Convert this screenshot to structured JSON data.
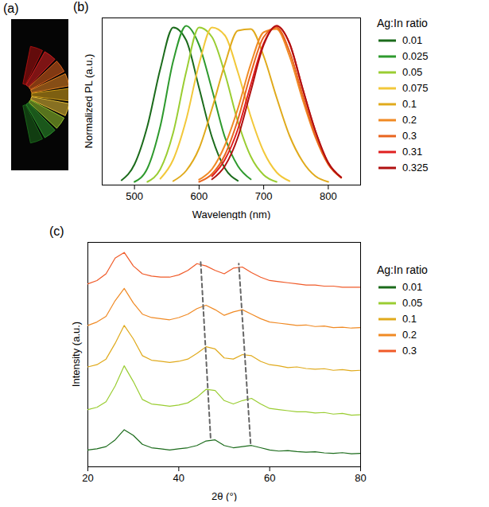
{
  "chart_data": [
    {
      "type": "image",
      "panel_label": "(a)"
    },
    {
      "type": "line",
      "panel_label": "(b)",
      "x_label": "Wavelength (nm)",
      "y_label": "Normalized PL (a.u.)",
      "xlim": [
        450,
        850
      ],
      "xticks": [
        500,
        600,
        700,
        800
      ],
      "ylim": [
        0,
        1.05
      ],
      "tick_labels": "x",
      "grid": false,
      "legend": "right",
      "legend_title": "Ag:In ratio",
      "x": [
        460,
        480,
        500,
        520,
        540,
        560,
        580,
        600,
        620,
        640,
        660,
        680,
        700,
        720,
        740,
        760,
        780,
        800,
        820,
        840
      ],
      "series": [
        {
          "name": "0.01",
          "color": "#1b6b1b",
          "values": [
            null,
            0.03,
            0.13,
            0.37,
            0.73,
            0.99,
            0.91,
            0.61,
            0.3,
            0.105,
            0.027,
            null,
            null,
            null,
            null,
            null,
            null,
            null,
            null,
            null
          ]
        },
        {
          "name": "0.025",
          "color": "#2e9a2e",
          "values": [
            null,
            null,
            0.02,
            0.105,
            0.37,
            0.78,
            1.0,
            0.88,
            0.6,
            0.3,
            0.12,
            0.036,
            null,
            null,
            null,
            null,
            null,
            null,
            null,
            null
          ]
        },
        {
          "name": "0.05",
          "color": "#9acd32",
          "values": [
            null,
            null,
            null,
            0.02,
            0.1,
            0.33,
            0.71,
            0.99,
            0.93,
            0.7,
            0.4,
            0.18,
            0.064,
            0.02,
            null,
            null,
            null,
            null,
            null,
            null
          ]
        },
        {
          "name": "0.075",
          "color": "#f2c83a",
          "values": [
            null,
            null,
            null,
            null,
            0.04,
            0.16,
            0.41,
            0.76,
            0.99,
            0.94,
            0.71,
            0.43,
            0.21,
            0.08,
            0.025,
            null,
            null,
            null,
            null,
            null
          ]
        },
        {
          "name": "0.1",
          "color": "#e0aa1c",
          "values": [
            null,
            null,
            null,
            null,
            null,
            0.025,
            0.09,
            0.23,
            0.48,
            0.76,
            0.97,
            0.98,
            0.81,
            0.55,
            0.31,
            0.15,
            0.056,
            0.02,
            null,
            null
          ]
        },
        {
          "name": "0.2",
          "color": "#f08a24",
          "values": [
            null,
            null,
            null,
            null,
            null,
            null,
            null,
            0.034,
            0.1,
            0.25,
            0.48,
            0.76,
            0.96,
            0.98,
            0.81,
            0.54,
            0.3,
            0.13,
            0.045,
            null
          ]
        },
        {
          "name": "0.3",
          "color": "#e8641e",
          "values": [
            null,
            null,
            null,
            null,
            null,
            null,
            null,
            0.02,
            0.07,
            0.19,
            0.41,
            0.7,
            0.93,
            0.99,
            0.84,
            0.57,
            0.31,
            0.13,
            0.047,
            null
          ]
        },
        {
          "name": "0.31",
          "color": "#e02020",
          "values": [
            null,
            null,
            null,
            null,
            null,
            null,
            null,
            null,
            0.055,
            0.16,
            0.35,
            0.63,
            0.89,
            1.0,
            0.89,
            0.61,
            0.34,
            0.14,
            0.048,
            null
          ]
        },
        {
          "name": "0.325",
          "color": "#b01010",
          "values": [
            null,
            null,
            null,
            null,
            null,
            null,
            null,
            null,
            0.036,
            0.12,
            0.3,
            0.59,
            0.88,
            1.0,
            0.89,
            0.61,
            0.34,
            0.14,
            0.048,
            null
          ]
        }
      ]
    },
    {
      "type": "line",
      "panel_label": "(c)",
      "x_label": "2θ (°)",
      "y_label": "Intensity (a.u.)",
      "xlim": [
        20,
        80
      ],
      "xticks": [
        20,
        40,
        60,
        80
      ],
      "ylim": [
        0,
        10
      ],
      "tick_labels": "x",
      "grid": false,
      "legend": "right",
      "legend_title": "Ag:In ratio",
      "x": [
        20,
        22,
        24,
        26,
        28,
        30,
        32,
        34,
        36,
        38,
        40,
        42,
        44,
        46,
        48,
        50,
        52,
        54,
        56,
        58,
        60,
        62,
        64,
        66,
        68,
        70,
        72,
        74,
        76,
        78,
        80
      ],
      "series": [
        {
          "name": "0.01",
          "color": "#1b6b1b",
          "values": [
            0.75,
            0.8,
            0.9,
            1.2,
            1.65,
            1.4,
            1.0,
            0.85,
            0.8,
            0.75,
            0.8,
            0.85,
            0.95,
            1.15,
            1.2,
            0.95,
            0.85,
            0.9,
            0.95,
            0.85,
            0.75,
            0.7,
            0.72,
            0.68,
            0.65,
            0.67,
            0.62,
            0.6,
            0.63,
            0.58,
            0.6
          ]
        },
        {
          "name": "0.05",
          "color": "#9acd32",
          "values": [
            2.55,
            2.65,
            2.9,
            3.6,
            4.5,
            3.8,
            3.0,
            2.8,
            2.75,
            2.7,
            2.75,
            2.85,
            3.1,
            3.45,
            3.4,
            2.95,
            2.8,
            2.95,
            3.05,
            2.8,
            2.6,
            2.55,
            2.5,
            2.45,
            2.45,
            2.4,
            2.42,
            2.35,
            2.38,
            2.3,
            2.32
          ]
        },
        {
          "name": "0.1",
          "color": "#e0aa1c",
          "values": [
            4.45,
            4.55,
            4.8,
            5.5,
            6.3,
            5.7,
            4.95,
            4.75,
            4.7,
            4.65,
            4.7,
            4.8,
            5.05,
            5.35,
            5.25,
            4.85,
            4.8,
            5.0,
            4.95,
            4.7,
            4.55,
            4.5,
            4.42,
            4.45,
            4.38,
            4.35,
            4.37,
            4.3,
            4.33,
            4.28,
            4.3
          ]
        },
        {
          "name": "0.2",
          "color": "#f08a24",
          "values": [
            6.3,
            6.45,
            6.7,
            7.4,
            7.95,
            7.3,
            6.8,
            6.65,
            6.6,
            6.55,
            6.65,
            6.8,
            7.05,
            7.2,
            7.0,
            6.75,
            6.9,
            7.0,
            6.8,
            6.6,
            6.45,
            6.4,
            6.35,
            6.3,
            6.32,
            6.25,
            6.27,
            6.2,
            6.22,
            6.18,
            6.2
          ]
        },
        {
          "name": "0.3",
          "color": "#f05a28",
          "values": [
            8.15,
            8.3,
            8.6,
            9.3,
            9.55,
            8.95,
            8.6,
            8.5,
            8.45,
            8.45,
            8.55,
            8.75,
            9.05,
            8.95,
            8.75,
            8.6,
            8.85,
            8.9,
            8.65,
            8.45,
            8.3,
            8.25,
            8.2,
            8.15,
            8.1,
            8.1,
            8.05,
            8.05,
            8.0,
            8.0,
            8.0
          ]
        }
      ],
      "guide_lines": [
        {
          "x": [
            47,
            44.8
          ],
          "y": [
            1.3,
            9.2
          ],
          "color": "#666666",
          "line_style": "dashed"
        },
        {
          "x": [
            55.8,
            53.2
          ],
          "y": [
            1.05,
            9.05
          ],
          "color": "#666666",
          "line_style": "dashed"
        }
      ]
    }
  ]
}
